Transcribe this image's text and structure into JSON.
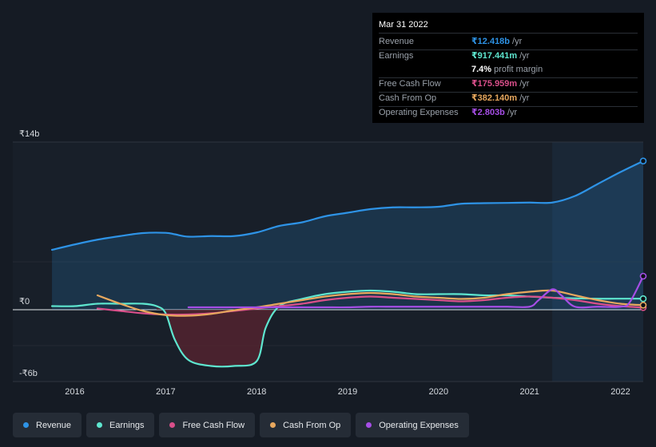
{
  "tooltip": {
    "date": "Mar 31 2022",
    "rows": [
      {
        "label": "Revenue",
        "value": "₹12.418b",
        "unit": "/yr",
        "color": "#2e93e6"
      },
      {
        "label": "Earnings",
        "value": "₹917.441m",
        "unit": "/yr",
        "color": "#5ee6cf"
      },
      {
        "label": "",
        "value": "7.4%",
        "unit": "profit margin",
        "color": "#ffffff"
      },
      {
        "label": "Free Cash Flow",
        "value": "₹175.959m",
        "unit": "/yr",
        "color": "#d94f8a"
      },
      {
        "label": "Cash From Op",
        "value": "₹382.140m",
        "unit": "/yr",
        "color": "#e8a85e"
      },
      {
        "label": "Operating Expenses",
        "value": "₹2.803b",
        "unit": "/yr",
        "color": "#a64ee6"
      }
    ]
  },
  "legend": [
    {
      "label": "Revenue",
      "color": "#2e93e6"
    },
    {
      "label": "Earnings",
      "color": "#5ee6cf"
    },
    {
      "label": "Free Cash Flow",
      "color": "#d94f8a"
    },
    {
      "label": "Cash From Op",
      "color": "#e8a85e"
    },
    {
      "label": "Operating Expenses",
      "color": "#a64ee6"
    }
  ],
  "chart_data": {
    "type": "line",
    "ylabel_top": "₹14b",
    "ylabel_zero": "₹0",
    "ylabel_bottom": "-₹6b",
    "ylim": [
      -6,
      14
    ],
    "xlim": [
      2015.6,
      2022.25
    ],
    "x_ticks": [
      {
        "value": 2016,
        "label": "2016"
      },
      {
        "value": 2017,
        "label": "2017"
      },
      {
        "value": 2018,
        "label": "2018"
      },
      {
        "value": 2019,
        "label": "2019"
      },
      {
        "value": 2020,
        "label": "2020"
      },
      {
        "value": 2021,
        "label": "2021"
      },
      {
        "value": 2022,
        "label": "2022"
      }
    ],
    "forecast_start": 2021.25,
    "series": [
      {
        "name": "Revenue",
        "color": "#2e93e6",
        "fill": true,
        "x": [
          2015.75,
          2016.0,
          2016.25,
          2016.5,
          2016.75,
          2017.0,
          2017.1,
          2017.25,
          2017.5,
          2017.75,
          2018.0,
          2018.25,
          2018.5,
          2018.75,
          2019.0,
          2019.25,
          2019.5,
          2019.75,
          2020.0,
          2020.25,
          2020.5,
          2020.75,
          2021.0,
          2021.25,
          2021.5,
          2021.75,
          2022.0,
          2022.25
        ],
        "y": [
          5.0,
          5.45,
          5.85,
          6.15,
          6.4,
          6.42,
          6.3,
          6.1,
          6.15,
          6.15,
          6.45,
          7.0,
          7.3,
          7.8,
          8.1,
          8.4,
          8.55,
          8.55,
          8.6,
          8.85,
          8.9,
          8.92,
          8.95,
          8.95,
          9.5,
          10.5,
          11.5,
          12.42
        ]
      },
      {
        "name": "Earnings",
        "color": "#5ee6cf",
        "fill": false,
        "x": [
          2015.75,
          2016.0,
          2016.25,
          2016.5,
          2016.75,
          2016.9,
          2017.0,
          2017.1,
          2017.25,
          2017.5,
          2017.75,
          2018.0,
          2018.1,
          2018.25,
          2018.5,
          2018.75,
          2019.0,
          2019.25,
          2019.5,
          2019.75,
          2020.0,
          2020.25,
          2020.5,
          2020.75,
          2021.0,
          2021.25,
          2021.5,
          2021.75,
          2022.0,
          2022.25
        ],
        "y": [
          0.3,
          0.3,
          0.5,
          0.5,
          0.5,
          0.3,
          -0.3,
          -2.5,
          -4.2,
          -4.7,
          -4.7,
          -4.3,
          -1.5,
          0.3,
          0.9,
          1.3,
          1.5,
          1.6,
          1.5,
          1.3,
          1.3,
          1.3,
          1.2,
          1.2,
          1.1,
          1.0,
          0.95,
          0.92,
          0.92,
          0.92
        ]
      },
      {
        "name": "Free Cash Flow",
        "color": "#d94f8a",
        "fill": false,
        "x": [
          2016.25,
          2016.5,
          2016.75,
          2017.0,
          2017.25,
          2017.5,
          2017.75,
          2018.0,
          2018.25,
          2018.5,
          2018.75,
          2019.0,
          2019.25,
          2019.5,
          2019.75,
          2020.0,
          2020.25,
          2020.5,
          2020.75,
          2021.0,
          2021.25,
          2021.5,
          2021.75,
          2022.0,
          2022.25
        ],
        "y": [
          0.1,
          -0.1,
          -0.3,
          -0.4,
          -0.4,
          -0.3,
          -0.1,
          0.1,
          0.3,
          0.5,
          0.8,
          1.0,
          1.1,
          1.0,
          0.9,
          0.8,
          0.7,
          0.8,
          1.0,
          1.1,
          1.0,
          0.8,
          0.5,
          0.3,
          0.18
        ]
      },
      {
        "name": "Cash From Op",
        "color": "#e8a85e",
        "fill": false,
        "x": [
          2016.25,
          2016.5,
          2016.75,
          2017.0,
          2017.25,
          2017.5,
          2017.75,
          2018.0,
          2018.25,
          2018.5,
          2018.75,
          2019.0,
          2019.25,
          2019.5,
          2019.75,
          2020.0,
          2020.25,
          2020.5,
          2020.75,
          2021.0,
          2021.25,
          2021.5,
          2021.75,
          2022.0,
          2022.25
        ],
        "y": [
          1.2,
          0.5,
          -0.1,
          -0.45,
          -0.5,
          -0.35,
          -0.05,
          0.2,
          0.5,
          0.8,
          1.1,
          1.3,
          1.4,
          1.3,
          1.1,
          1.0,
          0.9,
          1.0,
          1.3,
          1.5,
          1.6,
          1.2,
          0.8,
          0.5,
          0.38
        ]
      },
      {
        "name": "Operating Expenses",
        "color": "#a64ee6",
        "fill": false,
        "x": [
          2017.25,
          2017.5,
          2017.75,
          2018.0,
          2018.25,
          2018.5,
          2018.75,
          2019.0,
          2019.25,
          2019.5,
          2019.75,
          2020.0,
          2020.25,
          2020.5,
          2020.75,
          2021.0,
          2021.1,
          2021.25,
          2021.35,
          2021.5,
          2021.75,
          2022.0,
          2022.1,
          2022.25
        ],
        "y": [
          0.2,
          0.2,
          0.2,
          0.2,
          0.2,
          0.2,
          0.2,
          0.2,
          0.25,
          0.25,
          0.25,
          0.25,
          0.25,
          0.25,
          0.25,
          0.25,
          0.8,
          1.7,
          1.2,
          0.25,
          0.25,
          0.25,
          0.6,
          2.8
        ]
      }
    ]
  }
}
